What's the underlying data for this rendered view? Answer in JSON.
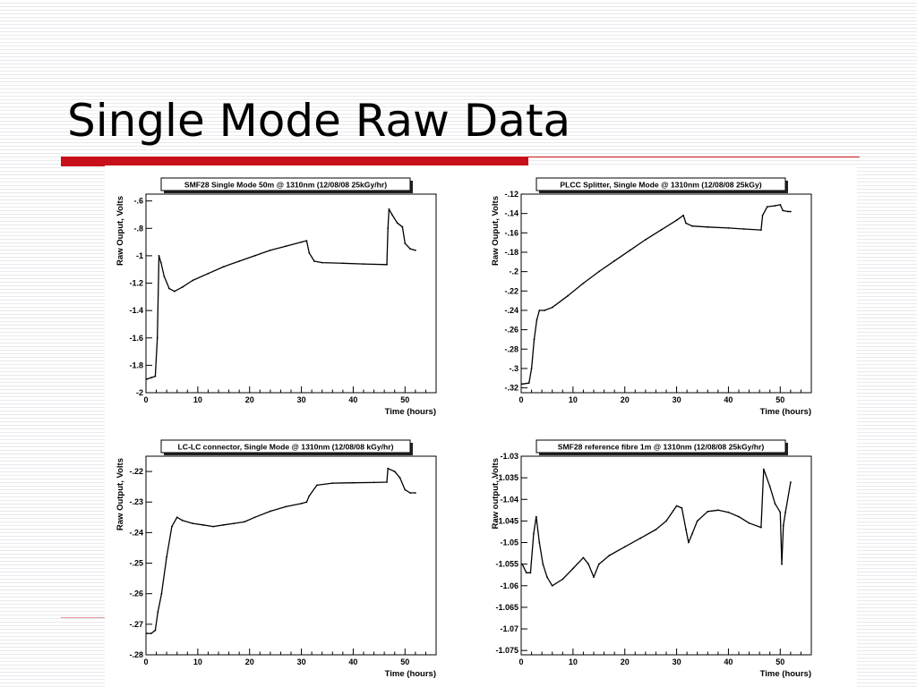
{
  "slide": {
    "title": "Single Mode Raw Data",
    "accent_color": "#c8101a"
  },
  "chart_data": [
    {
      "type": "scatter",
      "title": "SMF28 Single Mode 50m @ 1310nm (12/08/08 25kGy/hr)",
      "xlabel": "Time (hours)",
      "ylabel": "Raw Ouput, Volts",
      "xlim": [
        0,
        56
      ],
      "ylim": [
        -2,
        -0.55
      ],
      "xticks": [
        0,
        10,
        20,
        30,
        40,
        50
      ],
      "yticks": [
        -2,
        -1.8,
        -1.6,
        -1.4,
        -1.2,
        -1,
        -0.8,
        -0.6
      ],
      "grid": false,
      "series": [
        {
          "points": [
            [
              0.2,
              -1.9
            ],
            [
              1,
              -1.89
            ],
            [
              1.8,
              -1.88
            ],
            [
              2.2,
              -1.6
            ],
            [
              2.5,
              -1.0
            ],
            [
              2.9,
              -1.05
            ],
            [
              3.5,
              -1.15
            ],
            [
              4.5,
              -1.24
            ],
            [
              5.5,
              -1.26
            ],
            [
              7,
              -1.23
            ],
            [
              9,
              -1.18
            ],
            [
              12,
              -1.13
            ],
            [
              15,
              -1.08
            ],
            [
              18,
              -1.04
            ],
            [
              21,
              -1.0
            ],
            [
              24,
              -0.96
            ],
            [
              27,
              -0.93
            ],
            [
              30,
              -0.9
            ],
            [
              31,
              -0.89
            ],
            [
              31.5,
              -0.98
            ],
            [
              32.5,
              -1.04
            ],
            [
              34,
              -1.05
            ],
            [
              38,
              -1.055
            ],
            [
              42,
              -1.06
            ],
            [
              46.5,
              -1.065
            ],
            [
              46.7,
              -0.8
            ],
            [
              46.9,
              -0.66
            ],
            [
              47.5,
              -0.7
            ],
            [
              48.5,
              -0.76
            ],
            [
              49.5,
              -0.79
            ],
            [
              50,
              -0.91
            ],
            [
              51,
              -0.95
            ],
            [
              52,
              -0.96
            ]
          ]
        }
      ]
    },
    {
      "type": "scatter",
      "title": "PLCC Splitter, Single Mode @ 1310nm (12/08/08 25kGy)",
      "xlabel": "Time (hours)",
      "ylabel": "Raw Ouput, Volts",
      "xlim": [
        0,
        56
      ],
      "ylim": [
        -0.325,
        -0.12
      ],
      "xticks": [
        0,
        10,
        20,
        30,
        40,
        50
      ],
      "yticks": [
        -0.32,
        -0.3,
        -0.28,
        -0.26,
        -0.24,
        -0.22,
        -0.2,
        -0.18,
        -0.16,
        -0.14,
        -0.12
      ],
      "grid": false,
      "series": [
        {
          "points": [
            [
              0.2,
              -0.316
            ],
            [
              1.5,
              -0.315
            ],
            [
              2,
              -0.3
            ],
            [
              2.5,
              -0.27
            ],
            [
              3,
              -0.25
            ],
            [
              3.5,
              -0.24
            ],
            [
              4.5,
              -0.24
            ],
            [
              6,
              -0.237
            ],
            [
              9,
              -0.225
            ],
            [
              12,
              -0.212
            ],
            [
              15,
              -0.2
            ],
            [
              18,
              -0.189
            ],
            [
              21,
              -0.178
            ],
            [
              24,
              -0.167
            ],
            [
              27,
              -0.157
            ],
            [
              30,
              -0.147
            ],
            [
              31.3,
              -0.142
            ],
            [
              31.8,
              -0.15
            ],
            [
              33,
              -0.153
            ],
            [
              36,
              -0.154
            ],
            [
              40,
              -0.155
            ],
            [
              43,
              -0.156
            ],
            [
              46.3,
              -0.157
            ],
            [
              46.6,
              -0.142
            ],
            [
              47.5,
              -0.133
            ],
            [
              49,
              -0.132
            ],
            [
              50,
              -0.131
            ],
            [
              50.5,
              -0.137
            ],
            [
              51.5,
              -0.138
            ],
            [
              52,
              -0.138
            ]
          ]
        }
      ]
    },
    {
      "type": "scatter",
      "title": "LC-LC connector, Single Mode @ 1310nm (12/08/08 kGy/hr)",
      "xlabel": "Time (hours)",
      "ylabel": "Raw Output, Volts",
      "xlim": [
        0,
        56
      ],
      "ylim": [
        -0.28,
        -0.215
      ],
      "xticks": [
        0,
        10,
        20,
        30,
        40,
        50
      ],
      "yticks": [
        -0.28,
        -0.27,
        -0.26,
        -0.25,
        -0.24,
        -0.23,
        -0.22
      ],
      "grid": false,
      "series": [
        {
          "points": [
            [
              0.2,
              -0.273
            ],
            [
              1,
              -0.273
            ],
            [
              1.8,
              -0.272
            ],
            [
              2.3,
              -0.266
            ],
            [
              3,
              -0.26
            ],
            [
              4,
              -0.248
            ],
            [
              5,
              -0.238
            ],
            [
              6,
              -0.235
            ],
            [
              7,
              -0.236
            ],
            [
              9,
              -0.237
            ],
            [
              11,
              -0.2375
            ],
            [
              13,
              -0.238
            ],
            [
              15,
              -0.2375
            ],
            [
              17,
              -0.237
            ],
            [
              19,
              -0.2365
            ],
            [
              21,
              -0.235
            ],
            [
              24,
              -0.233
            ],
            [
              27,
              -0.2315
            ],
            [
              30,
              -0.2305
            ],
            [
              31,
              -0.23
            ],
            [
              31.5,
              -0.228
            ],
            [
              33,
              -0.2245
            ],
            [
              36,
              -0.2238
            ],
            [
              40,
              -0.2237
            ],
            [
              44,
              -0.2236
            ],
            [
              46.5,
              -0.2235
            ],
            [
              46.7,
              -0.219
            ],
            [
              48,
              -0.22
            ],
            [
              49,
              -0.222
            ],
            [
              50,
              -0.226
            ],
            [
              51,
              -0.227
            ],
            [
              52,
              -0.227
            ]
          ]
        }
      ]
    },
    {
      "type": "scatter",
      "title": "SMF28 reference fibre 1m @ 1310nm (12/08/08 25kGy/hr)",
      "xlabel": "Time (hours)",
      "ylabel": "Raw output, Volts",
      "xlim": [
        0,
        56
      ],
      "ylim": [
        -1.076,
        -1.03
      ],
      "xticks": [
        0,
        10,
        20,
        30,
        40,
        50
      ],
      "yticks": [
        -1.075,
        -1.07,
        -1.065,
        -1.06,
        -1.055,
        -1.05,
        -1.045,
        -1.04,
        -1.035,
        -1.03
      ],
      "grid": false,
      "series": [
        {
          "points": [
            [
              0.2,
              -1.055
            ],
            [
              1,
              -1.057
            ],
            [
              1.8,
              -1.057
            ],
            [
              2.4,
              -1.048
            ],
            [
              2.9,
              -1.044
            ],
            [
              3.5,
              -1.05
            ],
            [
              4.2,
              -1.055
            ],
            [
              5,
              -1.058
            ],
            [
              6,
              -1.06
            ],
            [
              8,
              -1.0585
            ],
            [
              10,
              -1.056
            ],
            [
              12,
              -1.0535
            ],
            [
              13,
              -1.055
            ],
            [
              14,
              -1.058
            ],
            [
              15,
              -1.055
            ],
            [
              17,
              -1.053
            ],
            [
              20,
              -1.051
            ],
            [
              23,
              -1.049
            ],
            [
              26,
              -1.047
            ],
            [
              28,
              -1.045
            ],
            [
              30,
              -1.0415
            ],
            [
              31,
              -1.042
            ],
            [
              31.8,
              -1.047
            ],
            [
              32.3,
              -1.05
            ],
            [
              33,
              -1.048
            ],
            [
              34,
              -1.045
            ],
            [
              36,
              -1.0428
            ],
            [
              38,
              -1.0425
            ],
            [
              40,
              -1.043
            ],
            [
              42,
              -1.044
            ],
            [
              44,
              -1.0455
            ],
            [
              46.3,
              -1.0465
            ],
            [
              46.8,
              -1.033
            ],
            [
              48,
              -1.037
            ],
            [
              49,
              -1.041
            ],
            [
              50,
              -1.043
            ],
            [
              50.3,
              -1.055
            ],
            [
              50.6,
              -1.046
            ],
            [
              51,
              -1.043
            ],
            [
              52,
              -1.036
            ]
          ]
        }
      ]
    }
  ]
}
